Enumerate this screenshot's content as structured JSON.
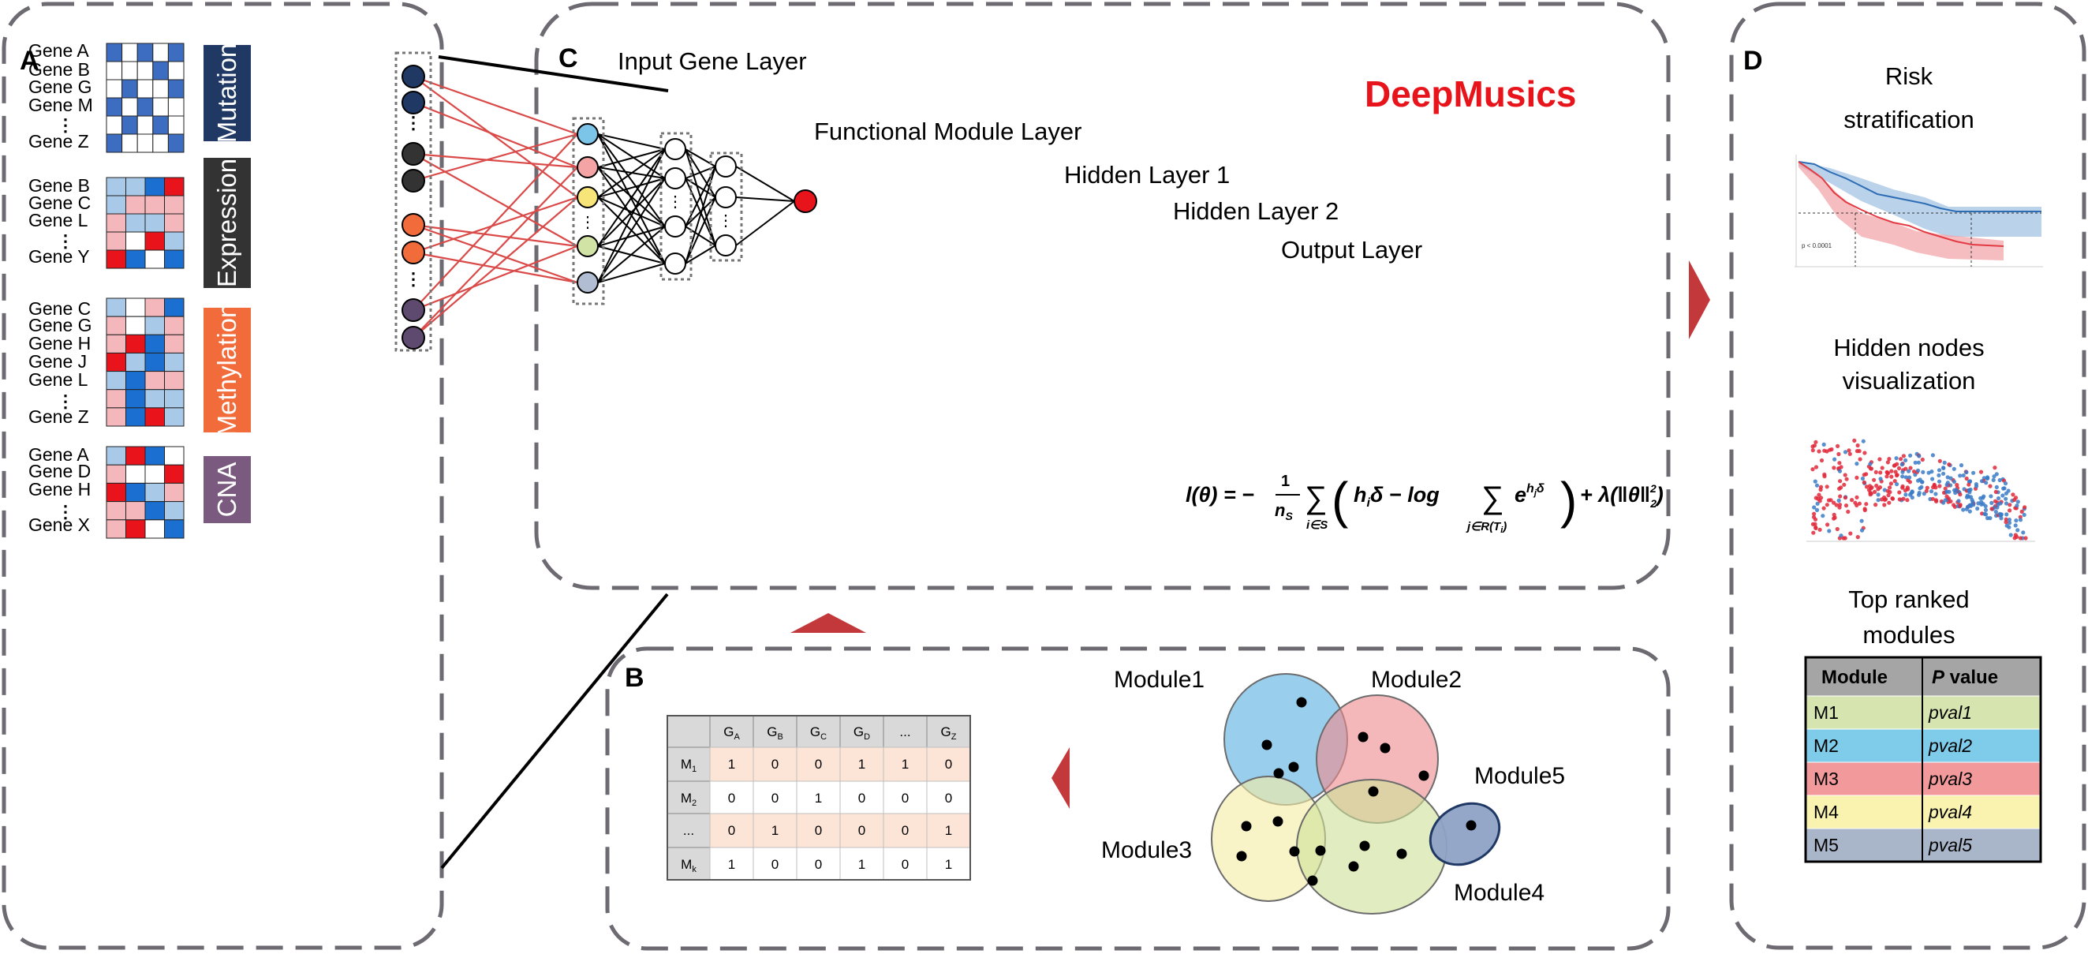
{
  "panel_a": {
    "letter": "A",
    "groups": [
      {
        "label": "Mutation",
        "color": "#1F3864",
        "genes": [
          "Gene A",
          "Gene B",
          "Gene G",
          "Gene M",
          "⋮",
          "Gene Z"
        ],
        "matrix_kind": "binary",
        "grid": [
          [
            "blue",
            "white",
            "blue",
            "white",
            "blue"
          ],
          [
            "white",
            "white",
            "white",
            "blue",
            "white"
          ],
          [
            "white",
            "blue",
            "white",
            "white",
            "blue"
          ],
          [
            "blue",
            "white",
            "blue",
            "white",
            "white"
          ],
          [
            "white",
            "blue",
            "white",
            "blue",
            "white"
          ],
          [
            "blue",
            "white",
            "white",
            "white",
            "blue"
          ]
        ]
      },
      {
        "label": "Expression",
        "color": "#333333",
        "genes": [
          "Gene B",
          "Gene C",
          "Gene L",
          "⋮",
          "Gene Y"
        ],
        "matrix_kind": "heat",
        "grid": [
          [
            "lb",
            "lb",
            "db",
            "r"
          ],
          [
            "lb",
            "pk",
            "pk",
            "pk"
          ],
          [
            "pk",
            "lb",
            "lb",
            "pk"
          ],
          [
            "pk",
            "white",
            "r",
            "lb"
          ],
          [
            "r",
            "db",
            "white",
            "db"
          ]
        ]
      },
      {
        "label": "Methylation",
        "color": "#F26B3A",
        "genes": [
          "Gene C",
          "Gene G",
          "Gene H",
          "Gene J",
          "Gene L",
          "⋮",
          "Gene Z"
        ],
        "matrix_kind": "heat",
        "grid": [
          [
            "lb",
            "white",
            "pk",
            "db"
          ],
          [
            "pk",
            "white",
            "lb",
            "pk"
          ],
          [
            "pk",
            "r",
            "db",
            "pk"
          ],
          [
            "r",
            "lb",
            "db",
            "lb"
          ],
          [
            "lb",
            "db",
            "pk",
            "pk"
          ],
          [
            "pk",
            "db",
            "lb",
            "lb"
          ],
          [
            "pk",
            "db",
            "r",
            "lb"
          ]
        ]
      },
      {
        "label": "CNA",
        "color": "#7A5A7E",
        "genes": [
          "Gene A",
          "Gene D",
          "Gene H",
          "⋮",
          "Gene X"
        ],
        "matrix_kind": "heat",
        "grid": [
          [
            "lb",
            "r",
            "db",
            "white"
          ],
          [
            "pk",
            "white",
            "white",
            "r"
          ],
          [
            "r",
            "db",
            "lb",
            "pk"
          ],
          [
            "pk",
            "pk",
            "db",
            "lb"
          ],
          [
            "pk",
            "r",
            "white",
            "db"
          ]
        ]
      }
    ]
  },
  "panel_c": {
    "letter": "C",
    "title": "DeepMusics",
    "title_color": "#E8141B",
    "layer_labels": {
      "input": "Input Gene Layer",
      "module": "Functional Module Layer",
      "hidden1": "Hidden Layer 1",
      "hidden2": "Hidden Layer 2",
      "output": "Output Layer"
    },
    "input_node_colors": [
      "#1F3864",
      "#1F3864",
      "#333333",
      "#333333",
      "#F26B3A",
      "#F26B3A",
      "#5E4A6E",
      "#5E4A6E"
    ],
    "module_node_colors": [
      "#7CC4E8",
      "#F4A4A4",
      "#F7E57A",
      "#D2E3A6",
      "#B1BDD2"
    ],
    "output_color": "#E8141B",
    "edge_color": "#D94A48",
    "ellipsis": "⋮",
    "formula": {
      "lhs": "l(θ) = −",
      "frac_num": "1",
      "frac_den": "n",
      "frac_den_sub": "S",
      "sum1": "∑",
      "sum1_sub": "i∈S",
      "paren_open": "(",
      "h_term": "h",
      "h_sub": "i",
      "delta": "δ − log",
      "sum2": "∑",
      "sum2_sub": "j∈R(T",
      "sum2_sub_i": "i",
      "sum2_sub_close": ")",
      "exp_base": "e",
      "exp_sup": "h",
      "exp_sup_sub": "j",
      "exp_sup_tail": "δ",
      "paren_close": ")",
      "reg": "+ λ(‖θ‖",
      "reg_sub": "2",
      "reg_sup": "2",
      "reg_close": ")"
    }
  },
  "panel_b": {
    "letter": "B",
    "table": {
      "header": [
        "",
        "G",
        "G",
        "G",
        "G",
        "...",
        "G"
      ],
      "header_subs": [
        "",
        "A",
        "B",
        "C",
        "D",
        "",
        "Z"
      ],
      "rows": [
        {
          "label": "M",
          "sub": "1",
          "values": [
            "1",
            "0",
            "0",
            "1",
            "1",
            "0"
          ],
          "shaded": true
        },
        {
          "label": "M",
          "sub": "2",
          "values": [
            "0",
            "0",
            "1",
            "0",
            "0",
            "0"
          ],
          "shaded": false
        },
        {
          "label": "...",
          "sub": "",
          "values": [
            "0",
            "1",
            "0",
            "0",
            "0",
            "1"
          ],
          "shaded": true
        },
        {
          "label": "M",
          "sub": "k",
          "values": [
            "1",
            "0",
            "0",
            "1",
            "0",
            "1"
          ],
          "shaded": false
        }
      ]
    },
    "modules": [
      "Module1",
      "Module2",
      "Module3",
      "Module4",
      "Module5"
    ],
    "module_colors": [
      "#5BB2E2",
      "#EE8A90",
      "#F5EDA6",
      "#CFE29A",
      "#8EA2C6"
    ]
  },
  "panel_d": {
    "letter": "D",
    "risk_title": [
      "Risk",
      "stratification"
    ],
    "risk_pvalue": "p < 0.0001",
    "hidden_title": [
      "Hidden nodes",
      "visualization"
    ],
    "modules_title": [
      "Top ranked",
      "modules"
    ],
    "table": {
      "header": [
        "Module",
        "value"
      ],
      "header_italic_prefix": "P",
      "rows": [
        {
          "module": "M1",
          "value": "pval1",
          "color": "#D6E4B0"
        },
        {
          "module": "M2",
          "value": "pval2",
          "color": "#7FCBEA"
        },
        {
          "module": "M3",
          "value": "pval3",
          "color": "#F29A9B"
        },
        {
          "module": "M4",
          "value": "pval4",
          "color": "#FAF3B0"
        },
        {
          "module": "M5",
          "value": "pval5",
          "color": "#A9B5C9"
        }
      ]
    }
  },
  "colors": {
    "panel_border": "#6E6A72",
    "arrow": "#C2383B",
    "mut_blue": "#3D6DC1",
    "heat_db": "#1A6FD0",
    "heat_lb": "#A9C9E8",
    "heat_pk": "#F3B7BC",
    "heat_r": "#E8131B"
  }
}
